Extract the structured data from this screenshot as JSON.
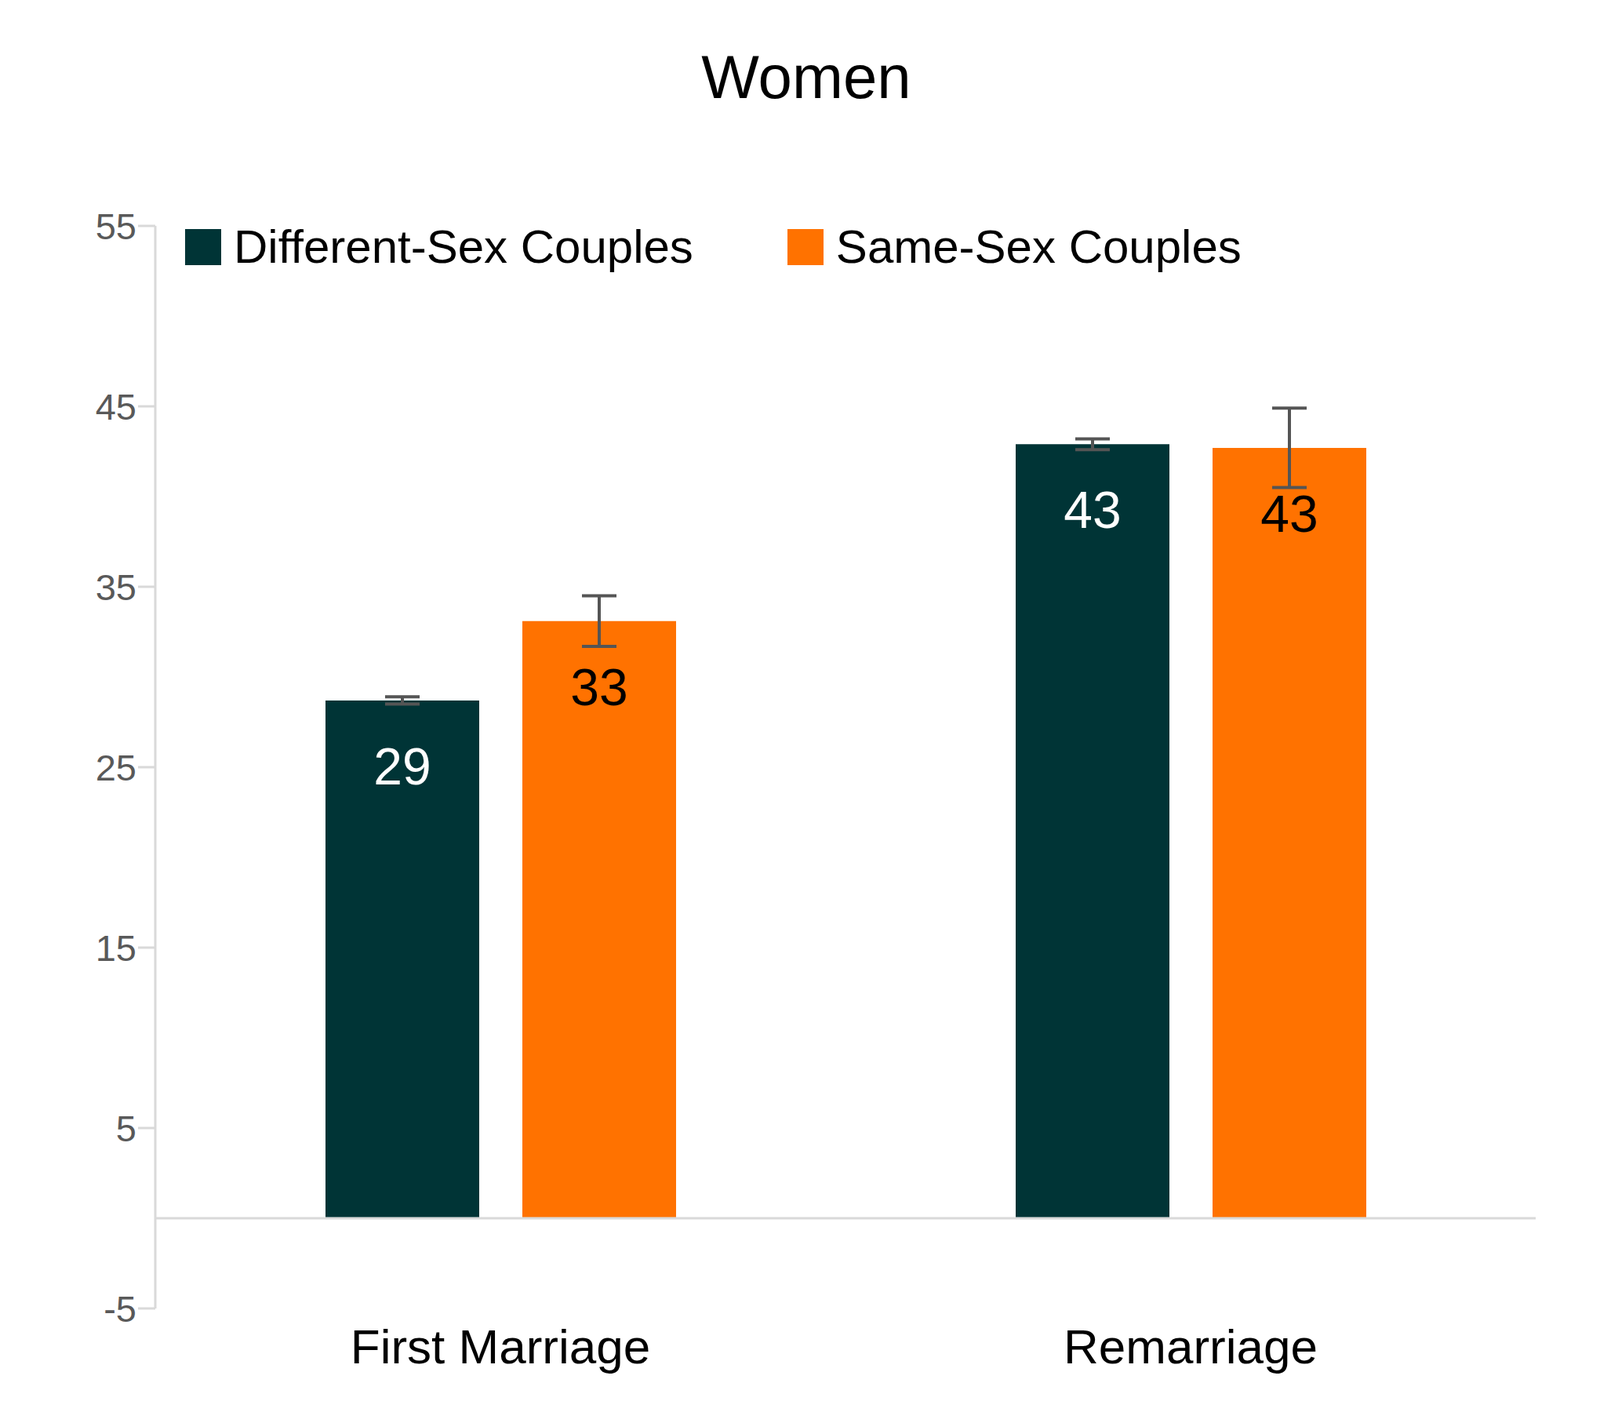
{
  "chart_data": {
    "type": "bar",
    "title": "Women",
    "categories": [
      "First Marriage",
      "Remarriage"
    ],
    "series": [
      {
        "name": "Different-Sex Couples",
        "color": "#003436",
        "values": [
          28.7,
          42.9
        ],
        "value_labels": [
          "29",
          "43"
        ],
        "errors": [
          0.2,
          0.3
        ]
      },
      {
        "name": "Same-Sex Couples",
        "color": "#ff7200",
        "values": [
          33.1,
          42.7
        ],
        "value_labels": [
          "33",
          "43"
        ],
        "errors": [
          1.4,
          2.2
        ]
      }
    ],
    "ylim": [
      -5,
      55
    ],
    "yticks": [
      -5,
      5,
      15,
      25,
      35,
      45,
      55
    ],
    "grid": false,
    "legend": "top",
    "data_labels": true
  }
}
